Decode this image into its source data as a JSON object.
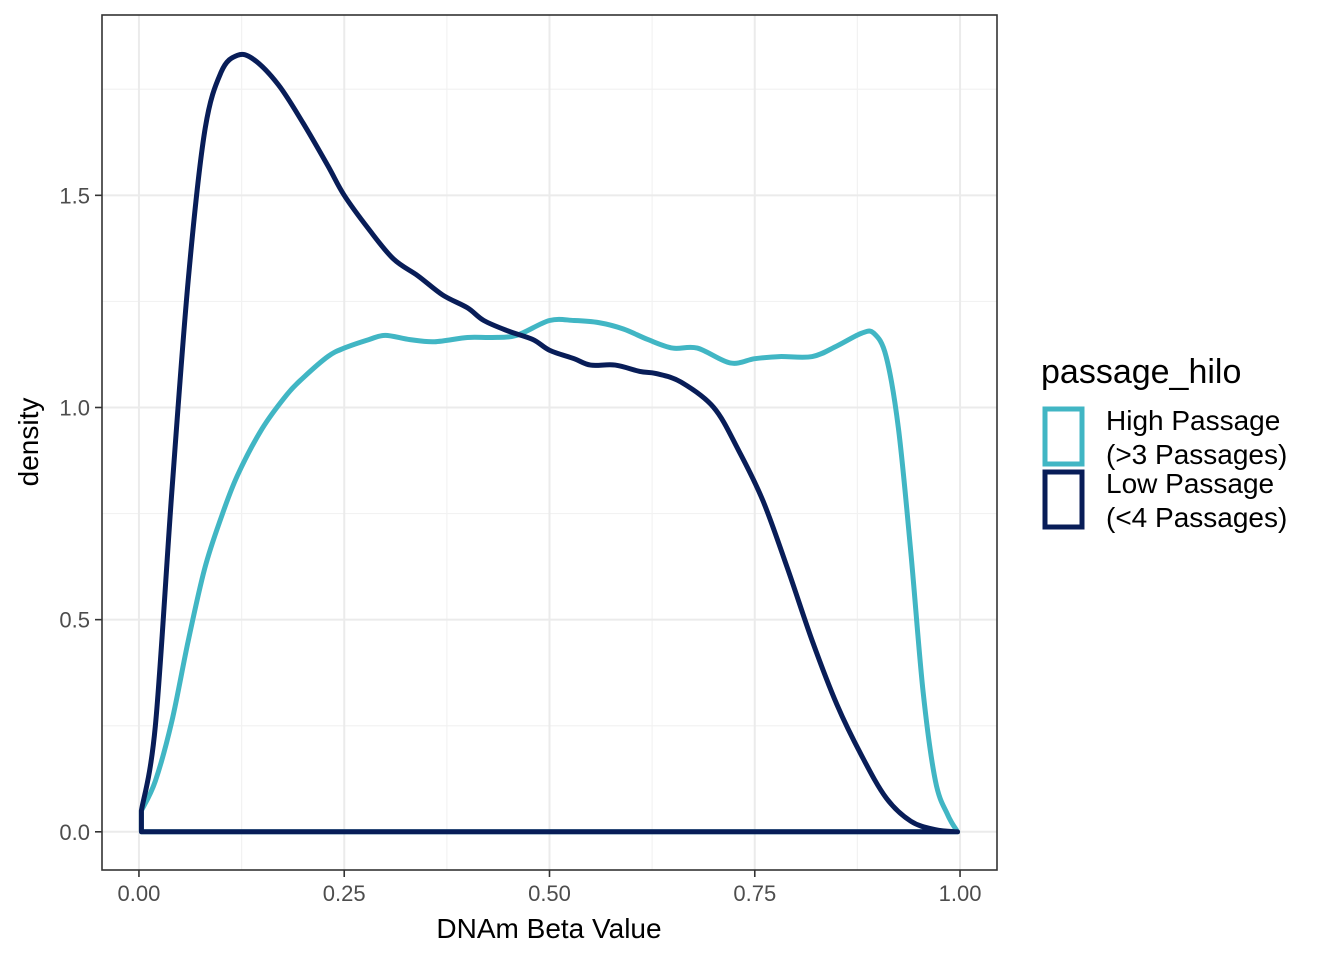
{
  "chart_data": {
    "type": "line",
    "title": "",
    "xlabel": "DNAm Beta Value",
    "ylabel": "density",
    "xlim": [
      -0.045,
      1.045
    ],
    "ylim": [
      -0.09,
      1.925
    ],
    "x_ticks": [
      0,
      0.25,
      0.5,
      0.75,
      1.0
    ],
    "x_tick_labels": [
      "0.00",
      "0.25",
      "0.50",
      "0.75",
      "1.00"
    ],
    "y_ticks": [
      0,
      0.5,
      1.0,
      1.5
    ],
    "y_tick_labels": [
      "0.0",
      "0.5",
      "1.0",
      "1.5"
    ],
    "grid": true,
    "legend": {
      "title": "passage_hilo",
      "position": "right"
    },
    "series": [
      {
        "name": "High Passage (>3 Passages)",
        "label_lines": [
          "High Passage",
          "(>3 Passages)"
        ],
        "color": "#41b6c4",
        "points": [
          [
            0.003,
            0.05
          ],
          [
            0.02,
            0.12
          ],
          [
            0.04,
            0.26
          ],
          [
            0.06,
            0.45
          ],
          [
            0.08,
            0.62
          ],
          [
            0.1,
            0.74
          ],
          [
            0.12,
            0.84
          ],
          [
            0.15,
            0.95
          ],
          [
            0.18,
            1.03
          ],
          [
            0.2,
            1.07
          ],
          [
            0.23,
            1.12
          ],
          [
            0.25,
            1.14
          ],
          [
            0.28,
            1.16
          ],
          [
            0.3,
            1.17
          ],
          [
            0.33,
            1.16
          ],
          [
            0.36,
            1.155
          ],
          [
            0.4,
            1.165
          ],
          [
            0.43,
            1.165
          ],
          [
            0.46,
            1.17
          ],
          [
            0.5,
            1.205
          ],
          [
            0.53,
            1.205
          ],
          [
            0.56,
            1.2
          ],
          [
            0.59,
            1.185
          ],
          [
            0.62,
            1.16
          ],
          [
            0.65,
            1.14
          ],
          [
            0.68,
            1.14
          ],
          [
            0.72,
            1.105
          ],
          [
            0.75,
            1.115
          ],
          [
            0.78,
            1.12
          ],
          [
            0.82,
            1.12
          ],
          [
            0.85,
            1.145
          ],
          [
            0.88,
            1.175
          ],
          [
            0.895,
            1.175
          ],
          [
            0.91,
            1.12
          ],
          [
            0.925,
            0.95
          ],
          [
            0.94,
            0.66
          ],
          [
            0.955,
            0.33
          ],
          [
            0.97,
            0.12
          ],
          [
            0.985,
            0.04
          ],
          [
            0.997,
            0.0
          ]
        ]
      },
      {
        "name": "Low Passage (<4 Passages)",
        "label_lines": [
          "Low Passage",
          "(<4 Passages)"
        ],
        "color": "#081d58",
        "points": [
          [
            0.003,
            0.05
          ],
          [
            0.02,
            0.25
          ],
          [
            0.04,
            0.8
          ],
          [
            0.06,
            1.3
          ],
          [
            0.08,
            1.65
          ],
          [
            0.1,
            1.79
          ],
          [
            0.12,
            1.83
          ],
          [
            0.14,
            1.82
          ],
          [
            0.17,
            1.76
          ],
          [
            0.2,
            1.67
          ],
          [
            0.23,
            1.57
          ],
          [
            0.25,
            1.5
          ],
          [
            0.28,
            1.42
          ],
          [
            0.31,
            1.35
          ],
          [
            0.34,
            1.31
          ],
          [
            0.37,
            1.265
          ],
          [
            0.4,
            1.235
          ],
          [
            0.42,
            1.205
          ],
          [
            0.45,
            1.18
          ],
          [
            0.48,
            1.16
          ],
          [
            0.5,
            1.135
          ],
          [
            0.53,
            1.115
          ],
          [
            0.55,
            1.1
          ],
          [
            0.58,
            1.1
          ],
          [
            0.61,
            1.085
          ],
          [
            0.63,
            1.08
          ],
          [
            0.66,
            1.06
          ],
          [
            0.7,
            1.0
          ],
          [
            0.73,
            0.9
          ],
          [
            0.76,
            0.78
          ],
          [
            0.79,
            0.62
          ],
          [
            0.82,
            0.45
          ],
          [
            0.85,
            0.3
          ],
          [
            0.88,
            0.18
          ],
          [
            0.91,
            0.08
          ],
          [
            0.94,
            0.025
          ],
          [
            0.97,
            0.005
          ],
          [
            0.997,
            0.0
          ]
        ]
      }
    ]
  }
}
